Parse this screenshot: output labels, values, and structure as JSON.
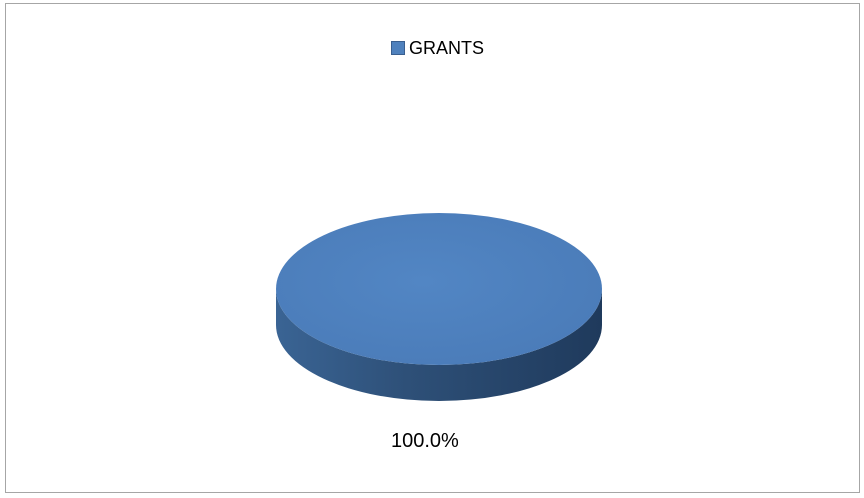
{
  "chart_data": {
    "type": "pie",
    "style": "3d",
    "categories": [
      "GRANTS"
    ],
    "values": [
      100.0
    ],
    "data_labels": [
      "100.0%"
    ],
    "legend_position": "top",
    "colors": {
      "GRANTS": "#4f81bd"
    }
  }
}
